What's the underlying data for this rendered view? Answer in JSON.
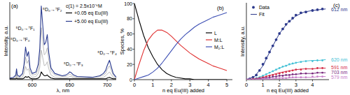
{
  "chart_data": [
    {
      "type": "line",
      "panel_label": "(a)",
      "x_label": "λ, nm",
      "y_label": "Intensity, a.u.",
      "xlim": [
        570,
        712
      ],
      "ylim": [
        0,
        100
      ],
      "xticks": [
        600,
        650,
        700
      ],
      "tick_labels": "x",
      "legend": "upper right",
      "legend_title": "c(1) = 2.5x10⁻⁶M",
      "x": [
        570,
        575,
        578,
        579,
        580,
        583,
        587,
        589,
        591,
        593,
        595,
        597,
        600,
        605,
        608,
        610,
        612,
        614,
        616,
        618,
        620,
        622,
        625,
        630,
        640,
        645,
        648,
        650,
        652,
        655,
        660,
        680,
        690,
        695,
        698,
        700,
        703,
        705,
        708,
        712
      ],
      "series": [
        {
          "color": "#a0a0a0",
          "values": [
            1,
            1,
            2,
            6,
            2,
            2,
            3,
            8,
            17,
            12,
            14,
            6,
            3,
            4,
            8,
            16,
            38,
            28,
            18,
            19,
            23,
            14,
            6,
            3,
            2,
            2,
            3,
            4,
            4,
            2,
            2,
            1,
            2,
            3,
            5,
            7,
            10,
            7,
            3,
            1
          ]
        },
        {
          "color": "#a0a0a0",
          "values": [
            1,
            2,
            4,
            10,
            4,
            3,
            6,
            14,
            29,
            21,
            25,
            11,
            6,
            7,
            14,
            28,
            67,
            49,
            32,
            34,
            41,
            25,
            11,
            6,
            4,
            4,
            6,
            7,
            6,
            4,
            3,
            2,
            4,
            6,
            8,
            13,
            18,
            13,
            6,
            2
          ]
        },
        {
          "name": "+0.05 eq Eu(III)",
          "color": "#000000",
          "values": [
            1,
            1,
            1,
            2,
            1,
            1,
            1,
            2,
            4,
            3,
            4,
            2,
            1,
            1,
            2,
            4,
            10,
            7,
            5,
            5,
            6,
            4,
            2,
            1,
            1,
            1,
            1,
            1,
            1,
            1,
            1,
            1,
            1,
            1,
            1,
            2,
            3,
            2,
            1,
            1
          ]
        },
        {
          "name": "+5.00 eq Eu(III)",
          "color": "#2a3b8f",
          "values": [
            2,
            3,
            6,
            14,
            6,
            4,
            8,
            20,
            42,
            30,
            36,
            15,
            8,
            10,
            20,
            40,
            95,
            70,
            45,
            48,
            58,
            35,
            15,
            8,
            5,
            6,
            8,
            10,
            9,
            6,
            4,
            3,
            5,
            8,
            12,
            18,
            25,
            18,
            8,
            3
          ]
        }
      ],
      "annotations": [
        {
          "text": "⁵D₀→⁷F₀",
          "x": 571,
          "y": 50
        },
        {
          "text": "⁵D₀→⁷F₁",
          "x": 578,
          "y": 64
        },
        {
          "text": "⁵D₀→⁷F₂",
          "x": 614,
          "y": 88
        },
        {
          "text": "⁵D₀→⁷F₃",
          "x": 642,
          "y": 18
        },
        {
          "text": "⁵D₀→⁷F₄",
          "x": 687,
          "y": 32
        }
      ]
    },
    {
      "type": "line",
      "panel_label": "(b)",
      "x_label": "n eq Eu(III) added",
      "y_label": "Species, %",
      "xlim": [
        0,
        5.3
      ],
      "ylim": [
        0,
        100
      ],
      "xticks": [
        0,
        1,
        2,
        3,
        4,
        5
      ],
      "yticks": [
        0,
        20,
        40,
        60,
        80,
        100
      ],
      "legend": "center right",
      "x": [
        0,
        0.25,
        0.5,
        0.75,
        1,
        1.25,
        1.5,
        1.75,
        2,
        2.25,
        2.5,
        2.75,
        3,
        3.25,
        3.5,
        3.75,
        4,
        4.25,
        4.5,
        4.75,
        5
      ],
      "series": [
        {
          "name": "L",
          "color": "#000000",
          "values": [
            100,
            78,
            58,
            42,
            30,
            20,
            13,
            8,
            5,
            3,
            2,
            1,
            1,
            0,
            0,
            0,
            0,
            0,
            0,
            0,
            0
          ]
        },
        {
          "name": "M:L",
          "color": "#e03030",
          "values": [
            0,
            20,
            38,
            52,
            60,
            65,
            65,
            62,
            57,
            51,
            45,
            40,
            35,
            31,
            27,
            24,
            21,
            18,
            16,
            14,
            12
          ]
        },
        {
          "name": "M₂:L",
          "color": "#3f51b5",
          "values": [
            0,
            2,
            4,
            6,
            10,
            15,
            22,
            30,
            38,
            46,
            53,
            59,
            64,
            69,
            73,
            76,
            79,
            82,
            84,
            86,
            88
          ]
        }
      ]
    },
    {
      "type": "scatter",
      "panel_label": "(c)",
      "x_label": "n eq Eu(III) added",
      "y_label": "Intensity, a.u.",
      "xlim": [
        0,
        5
      ],
      "ylim": [
        0,
        100
      ],
      "xticks": [
        0,
        1,
        2,
        3,
        4
      ],
      "tick_labels": "x",
      "legend": "upper left",
      "legend_entries": [
        "Data",
        "Fit"
      ],
      "x": [
        0,
        0.2,
        0.4,
        0.6,
        0.8,
        1,
        1.2,
        1.4,
        1.6,
        1.8,
        2,
        2.2,
        2.4,
        2.6,
        2.8,
        3,
        3.3,
        3.6,
        4,
        4.3,
        4.6
      ],
      "fit_x": [
        0,
        0.5,
        1,
        1.5,
        2,
        2.5,
        3,
        3.5,
        4,
        4.4,
        4.8
      ],
      "series": [
        {
          "name": "612 nm",
          "color": "#2d3a8c",
          "values": [
            0,
            1,
            3,
            6,
            12,
            20,
            28,
            36,
            44,
            52,
            60,
            66,
            72,
            76,
            80,
            84,
            87,
            88,
            90,
            91,
            92
          ],
          "fit": [
            0,
            4,
            18,
            40,
            60,
            74,
            83,
            88,
            90,
            91,
            92
          ]
        },
        {
          "name": "620 nm",
          "color": "#44c1d6",
          "values": [
            0,
            0,
            1,
            2,
            3,
            5,
            7,
            9,
            11,
            13,
            15,
            17,
            18,
            20,
            21,
            22,
            23,
            24,
            24,
            25,
            25
          ],
          "fit": [
            0,
            1,
            5,
            10,
            15,
            19,
            22,
            24,
            25,
            25,
            26
          ]
        },
        {
          "name": "591 nm",
          "color": "#d42b45",
          "values": [
            0,
            0,
            1,
            1,
            2,
            3,
            4,
            5,
            6,
            7,
            8,
            9,
            10,
            11,
            12,
            13,
            13,
            14,
            14,
            15,
            15
          ],
          "fit": [
            0,
            1,
            3,
            6,
            9,
            11,
            13,
            14,
            14,
            15,
            15
          ]
        },
        {
          "name": "703 nm",
          "color": "#7a2c7f",
          "values": [
            0,
            0,
            0,
            1,
            1,
            2,
            2,
            3,
            4,
            4,
            5,
            5,
            6,
            6,
            7,
            7,
            8,
            8,
            8,
            9,
            9
          ],
          "fit": [
            0,
            0,
            2,
            3,
            5,
            6,
            7,
            8,
            8,
            9,
            9
          ]
        },
        {
          "name": "579 nm",
          "color": "#c77dc9",
          "values": [
            0,
            0,
            0,
            0,
            0,
            1,
            1,
            1,
            1,
            2,
            2,
            2,
            2,
            3,
            3,
            3,
            3,
            3,
            4,
            4,
            4
          ],
          "fit": [
            0,
            0,
            1,
            1,
            2,
            2,
            3,
            3,
            3,
            4,
            4
          ]
        }
      ]
    }
  ]
}
